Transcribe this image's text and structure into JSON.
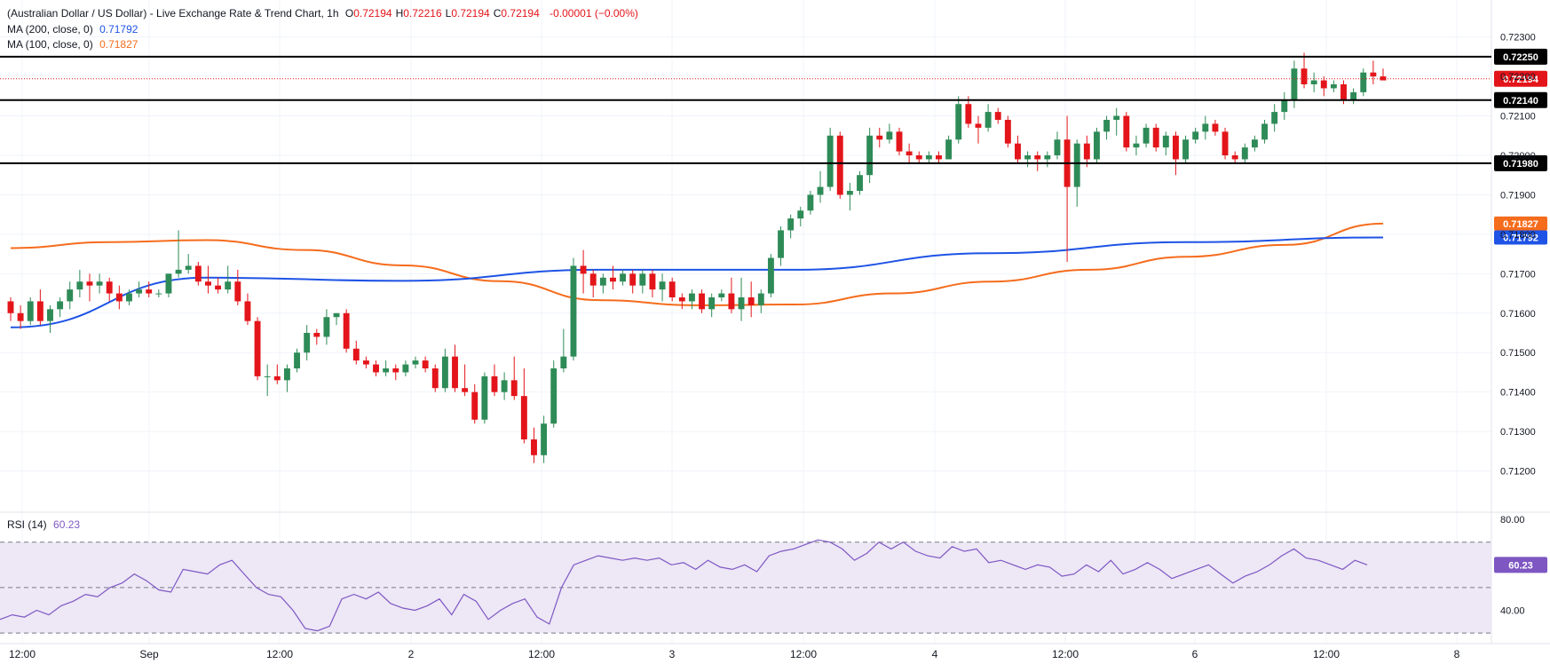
{
  "header": {
    "title": "(Australian Dollar / US Dollar) - Live Exchange Rate & Trend Chart, 1h",
    "ohlc": [
      {
        "k": "O",
        "v": "0.72194"
      },
      {
        "k": "H",
        "v": "0.72216"
      },
      {
        "k": "L",
        "v": "0.72194"
      },
      {
        "k": "C",
        "v": "0.72194"
      }
    ],
    "change": "-0.00001 (−0.00%)"
  },
  "ma200": {
    "label": "MA (200, close, 0)",
    "value": "0.71792",
    "color": "#1e53e5"
  },
  "ma100": {
    "label": "MA (100, close, 0)",
    "value": "0.71827",
    "color": "#f56c1d"
  },
  "rsi": {
    "label": "RSI (14)",
    "value": "60.23",
    "color": "#7e57c2"
  },
  "colors": {
    "up": "#2e8b57",
    "down": "#e3151a",
    "level": "#000000",
    "current": "#e3151a",
    "band": "#ede7f6"
  },
  "chart_data": [
    {
      "type": "candlestick",
      "title": "(Australian Dollar / US Dollar) - Live Exchange Rate & Trend Chart, 1h",
      "x_ticks": [
        "12:00",
        "Sep",
        "12:00",
        "2",
        "12:00",
        "3",
        "12:00",
        "4",
        "12:00",
        "6",
        "12:00",
        "8"
      ],
      "y_ticks": [
        "0.72300",
        "0.72200",
        "0.72100",
        "0.72000",
        "0.71900",
        "0.71800",
        "0.71700",
        "0.71600",
        "0.71500",
        "0.71400",
        "0.71300",
        "0.71200"
      ],
      "ylim": [
        0.711,
        0.7236
      ],
      "grid": true,
      "levels": [
        {
          "value": 0.7225,
          "label": "0.72250"
        },
        {
          "value": 0.7214,
          "label": "0.72140"
        },
        {
          "value": 0.7198,
          "label": "0.71980"
        }
      ],
      "current_price": {
        "value": 0.72194,
        "label": "0.72194"
      },
      "ohlc": [
        [
          0.7163,
          0.7164,
          0.7158,
          0.716
        ],
        [
          0.716,
          0.7162,
          0.7156,
          0.7158
        ],
        [
          0.7158,
          0.7164,
          0.7157,
          0.7163
        ],
        [
          0.7163,
          0.7166,
          0.7157,
          0.7158
        ],
        [
          0.7158,
          0.7162,
          0.7155,
          0.7161
        ],
        [
          0.7161,
          0.7164,
          0.7159,
          0.7163
        ],
        [
          0.7163,
          0.7168,
          0.7161,
          0.7166
        ],
        [
          0.7166,
          0.7171,
          0.7164,
          0.7168
        ],
        [
          0.7168,
          0.717,
          0.7163,
          0.7167
        ],
        [
          0.7167,
          0.717,
          0.7165,
          0.7168
        ],
        [
          0.7168,
          0.7169,
          0.7163,
          0.7165
        ],
        [
          0.7165,
          0.7167,
          0.7161,
          0.7163
        ],
        [
          0.7163,
          0.7166,
          0.7162,
          0.7165
        ],
        [
          0.7165,
          0.7168,
          0.7164,
          0.7166
        ],
        [
          0.7166,
          0.7168,
          0.7164,
          0.7165
        ],
        [
          0.7165,
          0.7166,
          0.7164,
          0.7165
        ],
        [
          0.7165,
          0.717,
          0.7164,
          0.717
        ],
        [
          0.717,
          0.7181,
          0.7169,
          0.7171
        ],
        [
          0.7171,
          0.7175,
          0.717,
          0.7172
        ],
        [
          0.7172,
          0.7173,
          0.7167,
          0.7168
        ],
        [
          0.7168,
          0.7172,
          0.7165,
          0.7167
        ],
        [
          0.7167,
          0.7169,
          0.7165,
          0.7166
        ],
        [
          0.7166,
          0.7172,
          0.7165,
          0.7168
        ],
        [
          0.7168,
          0.7171,
          0.7162,
          0.7163
        ],
        [
          0.7163,
          0.7165,
          0.7157,
          0.7158
        ],
        [
          0.7158,
          0.7159,
          0.7143,
          0.7144
        ],
        [
          0.7144,
          0.7147,
          0.7139,
          0.7144
        ],
        [
          0.7144,
          0.7147,
          0.7142,
          0.7143
        ],
        [
          0.7143,
          0.7147,
          0.714,
          0.7146
        ],
        [
          0.7146,
          0.7151,
          0.7145,
          0.715
        ],
        [
          0.715,
          0.7157,
          0.7148,
          0.7155
        ],
        [
          0.7155,
          0.7156,
          0.7152,
          0.7154
        ],
        [
          0.7154,
          0.7161,
          0.7152,
          0.7159
        ],
        [
          0.7159,
          0.716,
          0.7157,
          0.716
        ],
        [
          0.716,
          0.7161,
          0.715,
          0.7151
        ],
        [
          0.7151,
          0.7153,
          0.7147,
          0.7148
        ],
        [
          0.7148,
          0.7149,
          0.7146,
          0.7147
        ],
        [
          0.7147,
          0.7148,
          0.7144,
          0.7145
        ],
        [
          0.7145,
          0.7148,
          0.7144,
          0.7146
        ],
        [
          0.7146,
          0.7147,
          0.7143,
          0.7145
        ],
        [
          0.7145,
          0.7148,
          0.7144,
          0.7147
        ],
        [
          0.7147,
          0.7149,
          0.7146,
          0.7148
        ],
        [
          0.7148,
          0.7149,
          0.7145,
          0.7146
        ],
        [
          0.7146,
          0.7147,
          0.714,
          0.7141
        ],
        [
          0.7141,
          0.7151,
          0.714,
          0.7149
        ],
        [
          0.7149,
          0.7152,
          0.714,
          0.7141
        ],
        [
          0.7141,
          0.7147,
          0.7139,
          0.714
        ],
        [
          0.714,
          0.7142,
          0.7132,
          0.7133
        ],
        [
          0.7133,
          0.7145,
          0.7132,
          0.7144
        ],
        [
          0.7144,
          0.7147,
          0.7139,
          0.714
        ],
        [
          0.714,
          0.7145,
          0.7138,
          0.7143
        ],
        [
          0.7143,
          0.7149,
          0.7138,
          0.7139
        ],
        [
          0.7139,
          0.7146,
          0.7127,
          0.7128
        ],
        [
          0.7128,
          0.7131,
          0.7122,
          0.7124
        ],
        [
          0.7124,
          0.7134,
          0.7122,
          0.7132
        ],
        [
          0.7132,
          0.7148,
          0.7131,
          0.7146
        ],
        [
          0.7146,
          0.7156,
          0.7145,
          0.7149
        ],
        [
          0.7149,
          0.7174,
          0.7148,
          0.7172
        ],
        [
          0.7172,
          0.7176,
          0.7165,
          0.717
        ],
        [
          0.717,
          0.7171,
          0.7164,
          0.7167
        ],
        [
          0.7167,
          0.717,
          0.7165,
          0.7169
        ],
        [
          0.7169,
          0.7172,
          0.7166,
          0.7168
        ],
        [
          0.7168,
          0.7171,
          0.7167,
          0.717
        ],
        [
          0.717,
          0.7171,
          0.7165,
          0.7167
        ],
        [
          0.7167,
          0.7171,
          0.7165,
          0.717
        ],
        [
          0.717,
          0.7171,
          0.7164,
          0.7166
        ],
        [
          0.7166,
          0.717,
          0.7163,
          0.7168
        ],
        [
          0.7168,
          0.7169,
          0.7163,
          0.7164
        ],
        [
          0.7164,
          0.7165,
          0.7161,
          0.7163
        ],
        [
          0.7163,
          0.7166,
          0.7161,
          0.7165
        ],
        [
          0.7165,
          0.7166,
          0.716,
          0.7161
        ],
        [
          0.7161,
          0.7165,
          0.7159,
          0.7164
        ],
        [
          0.7164,
          0.7166,
          0.7163,
          0.7165
        ],
        [
          0.7165,
          0.7169,
          0.716,
          0.7161
        ],
        [
          0.7161,
          0.7169,
          0.7158,
          0.7164
        ],
        [
          0.7164,
          0.7168,
          0.7159,
          0.7162
        ],
        [
          0.7162,
          0.7166,
          0.716,
          0.7165
        ],
        [
          0.7165,
          0.7175,
          0.7164,
          0.7174
        ],
        [
          0.7174,
          0.7182,
          0.7172,
          0.7181
        ],
        [
          0.7181,
          0.7185,
          0.7179,
          0.7184
        ],
        [
          0.7184,
          0.7187,
          0.7182,
          0.7186
        ],
        [
          0.7186,
          0.7191,
          0.7185,
          0.719
        ],
        [
          0.719,
          0.7196,
          0.7188,
          0.7192
        ],
        [
          0.7192,
          0.7207,
          0.7191,
          0.7205
        ],
        [
          0.7205,
          0.7206,
          0.7189,
          0.719
        ],
        [
          0.719,
          0.7193,
          0.7186,
          0.7191
        ],
        [
          0.7191,
          0.7196,
          0.719,
          0.7195
        ],
        [
          0.7195,
          0.7207,
          0.7193,
          0.7205
        ],
        [
          0.7205,
          0.7207,
          0.7202,
          0.7204
        ],
        [
          0.7204,
          0.7208,
          0.7203,
          0.7206
        ],
        [
          0.7206,
          0.7207,
          0.72,
          0.7201
        ],
        [
          0.7201,
          0.7203,
          0.7198,
          0.72
        ],
        [
          0.72,
          0.7201,
          0.7198,
          0.7199
        ],
        [
          0.7199,
          0.7201,
          0.7198,
          0.72
        ],
        [
          0.72,
          0.7201,
          0.7198,
          0.7199
        ],
        [
          0.7199,
          0.7205,
          0.7199,
          0.7204
        ],
        [
          0.7204,
          0.7215,
          0.7203,
          0.7213
        ],
        [
          0.7213,
          0.7215,
          0.7207,
          0.7208
        ],
        [
          0.7208,
          0.721,
          0.7203,
          0.7207
        ],
        [
          0.7207,
          0.7213,
          0.7206,
          0.7211
        ],
        [
          0.7211,
          0.7212,
          0.7208,
          0.7209
        ],
        [
          0.7209,
          0.721,
          0.7202,
          0.7203
        ],
        [
          0.7203,
          0.7205,
          0.7198,
          0.7199
        ],
        [
          0.7199,
          0.7201,
          0.7197,
          0.72
        ],
        [
          0.72,
          0.7201,
          0.7196,
          0.7199
        ],
        [
          0.7199,
          0.7201,
          0.7197,
          0.72
        ],
        [
          0.72,
          0.7206,
          0.7199,
          0.7204
        ],
        [
          0.7204,
          0.721,
          0.7173,
          0.7192
        ],
        [
          0.7192,
          0.7204,
          0.7187,
          0.7203
        ],
        [
          0.7203,
          0.7205,
          0.7197,
          0.7199
        ],
        [
          0.7199,
          0.7207,
          0.7198,
          0.7206
        ],
        [
          0.7206,
          0.721,
          0.7204,
          0.7209
        ],
        [
          0.7209,
          0.7212,
          0.7205,
          0.721
        ],
        [
          0.721,
          0.7211,
          0.7201,
          0.7202
        ],
        [
          0.7202,
          0.7205,
          0.72,
          0.7203
        ],
        [
          0.7203,
          0.7208,
          0.7202,
          0.7207
        ],
        [
          0.7207,
          0.7208,
          0.7201,
          0.7202
        ],
        [
          0.7202,
          0.7206,
          0.72,
          0.7205
        ],
        [
          0.7205,
          0.7206,
          0.7195,
          0.7199
        ],
        [
          0.7199,
          0.7205,
          0.7198,
          0.7204
        ],
        [
          0.7204,
          0.7207,
          0.7203,
          0.7206
        ],
        [
          0.7206,
          0.721,
          0.7204,
          0.7208
        ],
        [
          0.7208,
          0.7209,
          0.7205,
          0.7206
        ],
        [
          0.7206,
          0.7207,
          0.7199,
          0.72
        ],
        [
          0.72,
          0.7201,
          0.7198,
          0.7199
        ],
        [
          0.7199,
          0.7203,
          0.7198,
          0.7202
        ],
        [
          0.7202,
          0.7205,
          0.7201,
          0.7204
        ],
        [
          0.7204,
          0.7209,
          0.7203,
          0.7208
        ],
        [
          0.7208,
          0.7213,
          0.7206,
          0.7211
        ],
        [
          0.7211,
          0.7216,
          0.7209,
          0.7214
        ],
        [
          0.7214,
          0.7224,
          0.7212,
          0.7222
        ],
        [
          0.7222,
          0.7226,
          0.7217,
          0.7218
        ],
        [
          0.7218,
          0.7221,
          0.7216,
          0.7219
        ],
        [
          0.7219,
          0.722,
          0.7215,
          0.7217
        ],
        [
          0.7217,
          0.7219,
          0.7216,
          0.7218
        ],
        [
          0.7218,
          0.7219,
          0.7213,
          0.7214
        ],
        [
          0.7214,
          0.7217,
          0.7213,
          0.7216
        ],
        [
          0.7216,
          0.7222,
          0.7215,
          0.7221
        ],
        [
          0.7221,
          0.7224,
          0.7218,
          0.722
        ],
        [
          0.722,
          0.7222,
          0.7219,
          0.7219
        ]
      ],
      "ma200": [
        0.71564,
        0.7169,
        0.71682,
        0.7171,
        0.7171,
        0.71752,
        0.7178,
        0.71792
      ],
      "ma100": [
        0.71765,
        0.7178,
        0.71785,
        0.7176,
        0.71721,
        0.71681,
        0.71633,
        0.7162,
        0.71622,
        0.7165,
        0.7168,
        0.7171,
        0.71743,
        0.71773,
        0.71827
      ]
    },
    {
      "type": "line",
      "title": "RSI (14)",
      "y_ticks": [
        "80.00",
        "40.00"
      ],
      "ylim": [
        32,
        82
      ],
      "bands": [
        70,
        50,
        30
      ],
      "values": [
        36,
        38,
        37,
        40,
        38,
        42,
        44,
        47,
        46,
        50,
        52,
        56,
        53,
        49,
        48,
        58,
        57,
        56,
        60,
        62,
        56,
        50,
        47,
        46,
        40,
        32,
        31,
        33,
        45,
        47,
        45,
        48,
        43,
        41,
        40,
        42,
        45,
        38,
        47,
        44,
        36,
        40,
        43,
        45,
        37,
        34,
        50,
        60,
        62,
        64,
        63,
        62,
        63,
        62,
        63,
        60,
        61,
        58,
        62,
        59,
        58,
        60,
        57,
        64,
        66,
        67,
        69,
        71,
        70,
        67,
        62,
        65,
        70,
        67,
        70,
        66,
        64,
        63,
        68,
        66,
        67,
        61,
        62,
        60,
        58,
        60,
        59,
        55,
        56,
        60,
        57,
        62,
        56,
        58,
        61,
        58,
        54,
        56,
        58,
        60,
        56,
        52,
        55,
        57,
        60,
        64,
        67,
        63,
        62,
        60,
        58,
        62,
        60
      ]
    }
  ]
}
